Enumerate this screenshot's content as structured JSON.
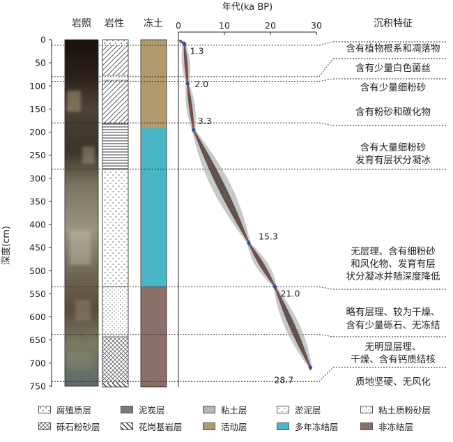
{
  "columns": {
    "photo": "岩照",
    "lithology": "岩性",
    "frozen": "冻土",
    "age_axis": "年代(ka BP)",
    "sediment": "沉积特征"
  },
  "depth_axis": {
    "label": "深度(cm)",
    "ticks": [
      0,
      50,
      100,
      150,
      200,
      250,
      300,
      350,
      400,
      450,
      500,
      550,
      600,
      650,
      700,
      750
    ]
  },
  "age_ticks": [
    0,
    10,
    20,
    30
  ],
  "age_points": [
    {
      "age": 1.3,
      "depth": 10,
      "label": "1.3"
    },
    {
      "age": 2.0,
      "depth": 95,
      "label": "2.0"
    },
    {
      "age": 3.3,
      "depth": 195,
      "label": "3.3"
    },
    {
      "age": 15.3,
      "depth": 440,
      "label": "15.3"
    },
    {
      "age": 21.0,
      "depth": 535,
      "label": "21.0"
    },
    {
      "age": 28.7,
      "depth": 710,
      "label": "28.7"
    }
  ],
  "boundaries": [
    12,
    80,
    90,
    180,
    280,
    535,
    638,
    740
  ],
  "sediment_notes": [
    "含有植物根系和凋落物",
    "含有少量白色菌丝",
    "含有少量细粉砂",
    "含有粉砂和碳化物",
    "含有大量细粉砂",
    "发育有层状分凝冰",
    "无层理、含有细粉砂",
    "和风化物、发育有层",
    "状分凝冰并随深度降低",
    "略有层理、较为干燥、",
    "含有少量砾石、无冻结",
    "无明显层理、",
    "干燥、含有钙质结核",
    "质地坚硬、无风化"
  ],
  "legend": [
    "腐殖质层",
    "泥炭层",
    "粘土层",
    "淤泥层",
    "粘土质粉砂层",
    "砾石粉砂层",
    "花岗基岩层",
    "活动层",
    "多年冻结层",
    "非冻结层"
  ],
  "colors": {
    "active_layer": "#b39a6e",
    "permafrost": "#4ab7c6",
    "non_frozen": "#8a6f68"
  }
}
